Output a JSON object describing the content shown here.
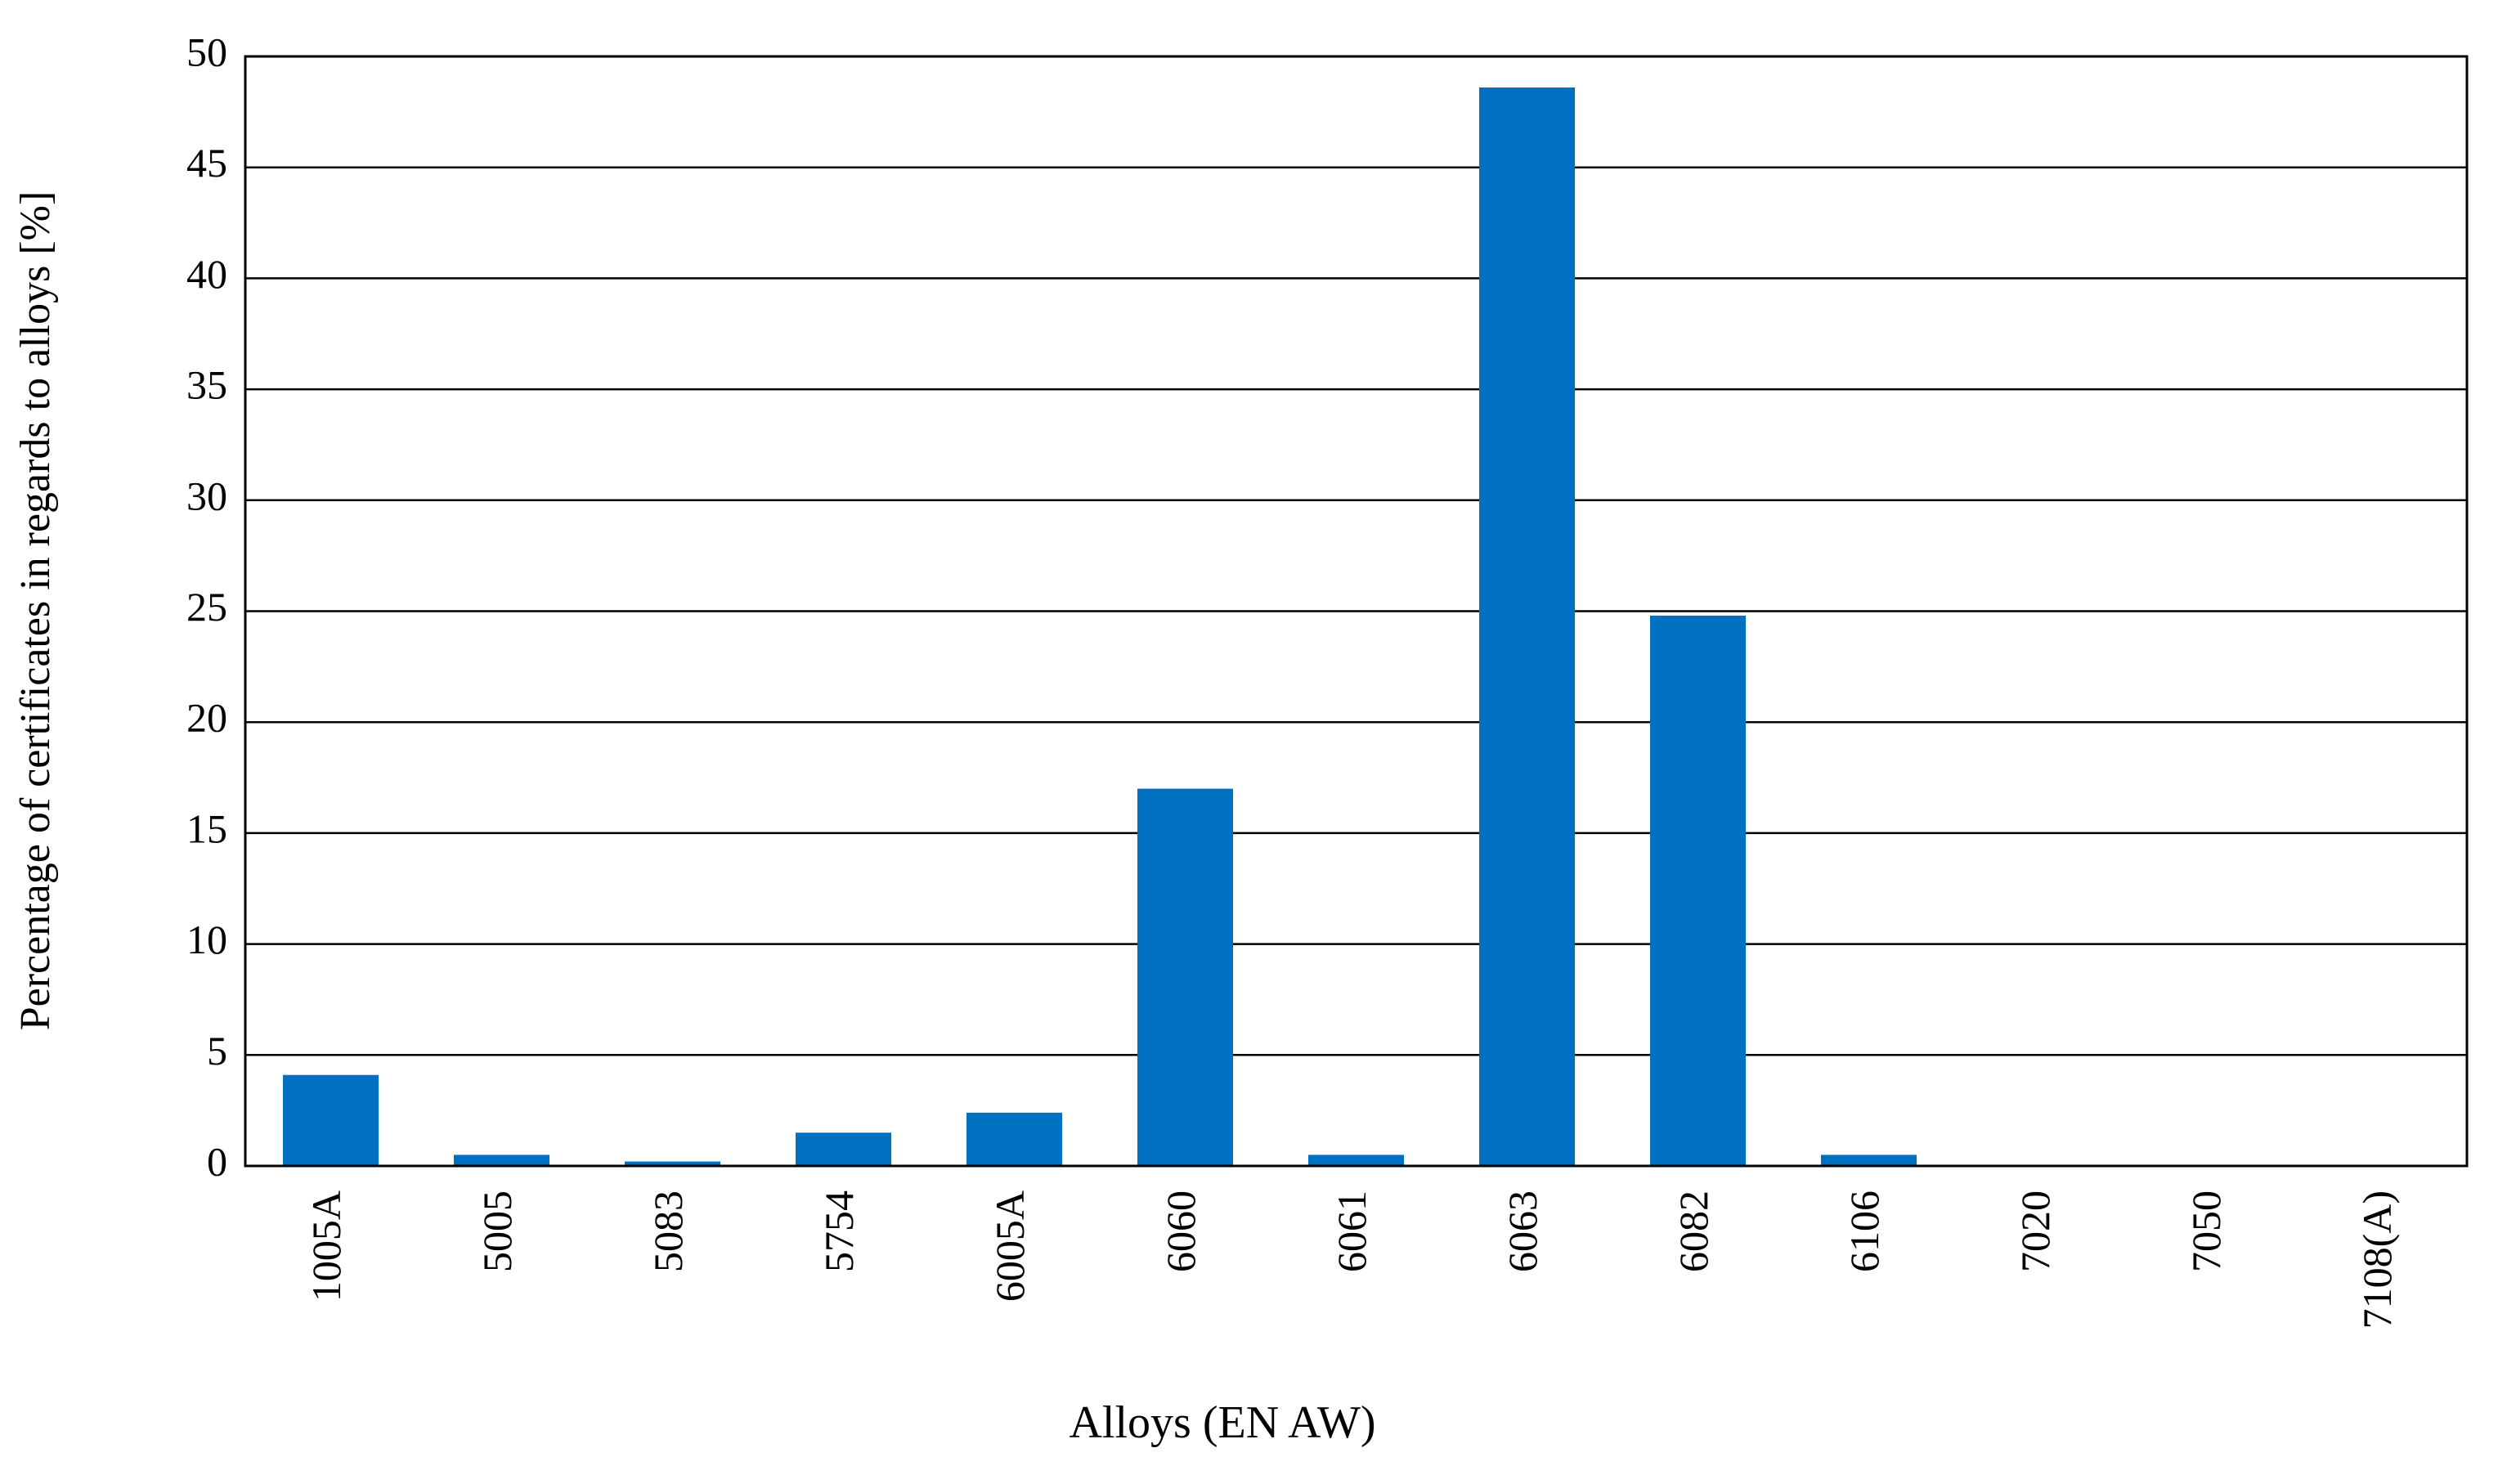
{
  "chart_data": {
    "type": "bar",
    "categories": [
      "1005A",
      "5005",
      "5083",
      "5754",
      "6005A",
      "6060",
      "6061",
      "6063",
      "6082",
      "6106",
      "7020",
      "7050",
      "7108(A)"
    ],
    "values": [
      4.1,
      0.5,
      0.2,
      1.5,
      2.4,
      17,
      0.5,
      48.6,
      24.8,
      0.5,
      0,
      0,
      0
    ],
    "color": "#0070c0",
    "x_label": "Alloys (EN AW)",
    "y_label": "Percentage of certificates in regards to alloys [%]",
    "ylim": [
      0,
      50
    ],
    "yticks": [
      0,
      5,
      10,
      15,
      20,
      25,
      30,
      35,
      40,
      45,
      50
    ],
    "grid": true
  }
}
